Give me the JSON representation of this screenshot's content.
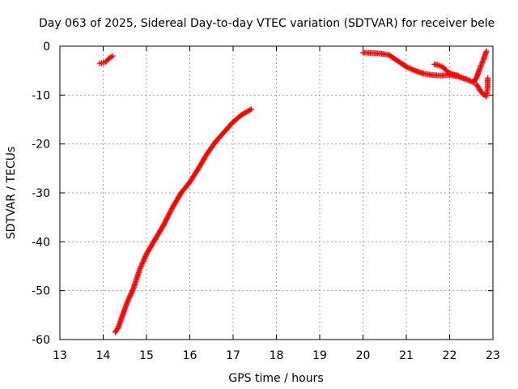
{
  "chart_data": {
    "type": "scatter",
    "title": "Day 063 of 2025, Sidereal Day-to-day VTEC variation (SDTVAR) for receiver bele",
    "xlabel": "GPS time / hours",
    "ylabel": "SDTVAR / TECUs",
    "xlim": [
      13,
      23
    ],
    "ylim": [
      -60,
      0
    ],
    "xticks": [
      13,
      14,
      15,
      16,
      17,
      18,
      19,
      20,
      21,
      22,
      23
    ],
    "yticks": [
      0,
      -10,
      -20,
      -30,
      -40,
      -50,
      -60
    ],
    "grid": true,
    "marker": "+",
    "series_color": "#ff0000",
    "series": [
      {
        "name": "segment-1",
        "points": [
          [
            13.92,
            -3.5
          ],
          [
            14.0,
            -3.4
          ],
          [
            14.05,
            -3.3
          ],
          [
            14.1,
            -2.8
          ],
          [
            14.15,
            -2.4
          ],
          [
            14.22,
            -2.0
          ]
        ]
      },
      {
        "name": "segment-2",
        "points": [
          [
            14.28,
            -58.5
          ],
          [
            14.35,
            -57.5
          ],
          [
            14.45,
            -55.0
          ],
          [
            14.55,
            -52.5
          ],
          [
            14.7,
            -49.5
          ],
          [
            14.85,
            -45.5
          ],
          [
            15.0,
            -42.5
          ],
          [
            15.2,
            -39.5
          ],
          [
            15.4,
            -36.5
          ],
          [
            15.6,
            -33.0
          ],
          [
            15.8,
            -30.0
          ],
          [
            16.0,
            -27.8
          ],
          [
            16.2,
            -25.0
          ],
          [
            16.4,
            -22.0
          ],
          [
            16.6,
            -19.5
          ],
          [
            16.8,
            -17.5
          ],
          [
            17.0,
            -15.5
          ],
          [
            17.2,
            -14.0
          ],
          [
            17.42,
            -12.9
          ]
        ]
      },
      {
        "name": "segment-3",
        "points": [
          [
            20.0,
            -1.3
          ],
          [
            20.2,
            -1.4
          ],
          [
            20.4,
            -1.5
          ],
          [
            20.6,
            -1.8
          ],
          [
            20.8,
            -3.0
          ],
          [
            21.0,
            -4.2
          ],
          [
            21.2,
            -5.0
          ],
          [
            21.4,
            -5.6
          ],
          [
            21.6,
            -5.9
          ],
          [
            21.8,
            -6.0
          ],
          [
            22.0,
            -5.9
          ],
          [
            22.2,
            -6.2
          ],
          [
            22.4,
            -6.8
          ],
          [
            22.55,
            -7.4
          ],
          [
            22.62,
            -6.5
          ],
          [
            22.7,
            -4.5
          ],
          [
            22.78,
            -2.8
          ],
          [
            22.85,
            -1.0
          ]
        ]
      },
      {
        "name": "segment-4",
        "points": [
          [
            21.65,
            -3.7
          ],
          [
            21.75,
            -3.9
          ],
          [
            21.85,
            -4.3
          ],
          [
            21.95,
            -5.2
          ],
          [
            22.05,
            -5.7
          ],
          [
            22.2,
            -6.0
          ]
        ]
      },
      {
        "name": "segment-5",
        "points": [
          [
            22.62,
            -7.8
          ],
          [
            22.7,
            -9.0
          ],
          [
            22.78,
            -9.9
          ],
          [
            22.85,
            -10.3
          ],
          [
            22.88,
            -8.5
          ],
          [
            22.88,
            -6.5
          ]
        ]
      }
    ]
  }
}
